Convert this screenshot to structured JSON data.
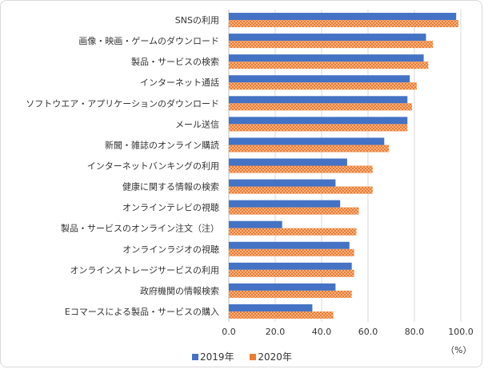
{
  "chart_data": {
    "type": "bar",
    "orientation": "horizontal",
    "categories": [
      "SNSの利用",
      "画像・映画・ゲームのダウンロード",
      "製品・サービスの検索",
      "インターネット通話",
      "ソフトウエア・アプリケーションのダウンロード",
      "メール送信",
      "新聞・雑誌のオンライン購読",
      "インターネットバンキングの利用",
      "健康に関する情報の検索",
      "オンラインテレビの視聴",
      "製品・サービスのオンライン注文（注）",
      "オンラインラジオの視聴",
      "オンラインストレージサービスの利用",
      "政府機関の情報検索",
      "Eコマースによる製品・サービスの購入"
    ],
    "series": [
      {
        "name": "2019年",
        "color": "#4472C4",
        "values": [
          98,
          85,
          84,
          78,
          77,
          77,
          67,
          51,
          46,
          48,
          23,
          52,
          53,
          46,
          36
        ]
      },
      {
        "name": "2020年",
        "color": "#ED7D31",
        "values": [
          99,
          88,
          86,
          81,
          79,
          77,
          69,
          62,
          62,
          56,
          55,
          54,
          54,
          53,
          45
        ]
      }
    ],
    "xlim": [
      0,
      100
    ],
    "xticks": [
      "0.0",
      "20.0",
      "40.0",
      "60.0",
      "80.0",
      "100.0"
    ],
    "unit": "（%）",
    "legend": "bottom",
    "grid": true
  }
}
